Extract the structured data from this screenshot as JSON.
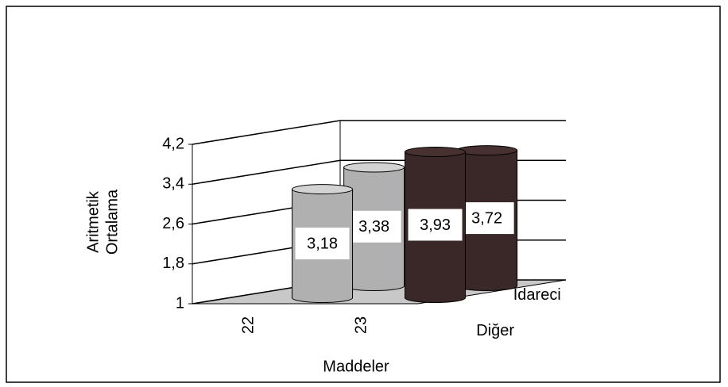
{
  "chart_data": {
    "type": "bar3d",
    "y_label": [
      "Aritmetik",
      "Ortalama"
    ],
    "x_label": "Maddeler",
    "categories": [
      "22",
      "23"
    ],
    "category_colors": [
      "#b0b0b0",
      "#3a2828"
    ],
    "series": [
      {
        "name": "Diğer",
        "values": [
          3.18,
          3.93
        ],
        "value_labels": [
          "3,18",
          "3,93"
        ]
      },
      {
        "name": "İdareci",
        "values": [
          3.38,
          3.72
        ],
        "value_labels": [
          "3,38",
          "3,72"
        ]
      }
    ],
    "ylim": [
      1,
      4.2
    ],
    "yticks": [
      1,
      {
        "value": 1.8,
        "label": "1,8"
      },
      {
        "value": 2.6,
        "label": "2,6"
      },
      {
        "value": 3.4,
        "label": "3,4"
      },
      {
        "value": 4.2,
        "label": "4,2"
      }
    ],
    "grid": true
  }
}
